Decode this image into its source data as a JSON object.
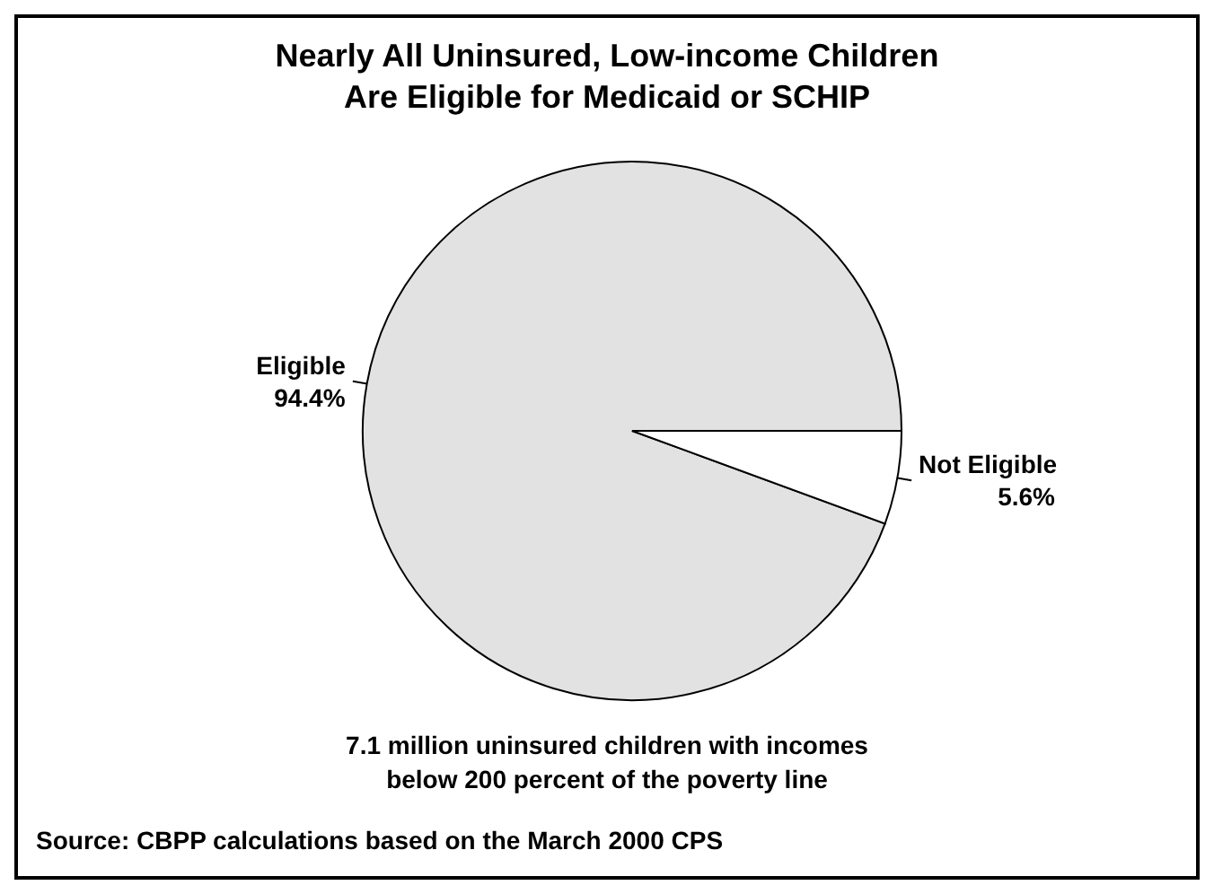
{
  "chart_data": {
    "type": "pie",
    "title": "Nearly All Uninsured, Low-income Children\nAre Eligible for Medicaid or SCHIP",
    "categories": [
      "Eligible",
      "Not Eligible"
    ],
    "values": [
      94.4,
      5.6
    ],
    "colors": [
      "#e2e2e2",
      "#ffffff"
    ],
    "value_labels": [
      "94.4%",
      "5.6%"
    ],
    "annotations": [
      "7.1 million uninsured children with incomes\nbelow 200 percent of the poverty line",
      "Source:  CBPP calculations based on the March 2000 CPS"
    ]
  }
}
